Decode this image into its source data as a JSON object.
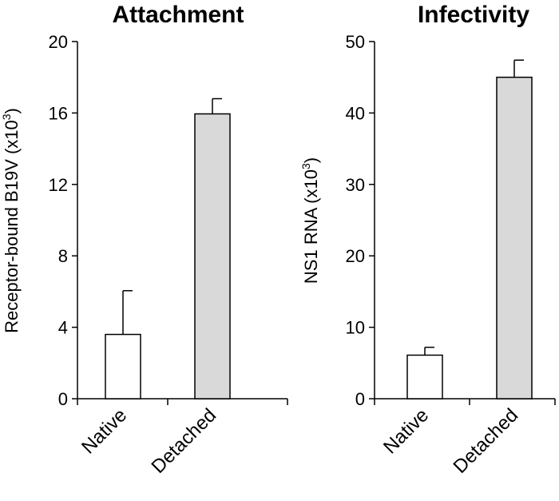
{
  "chart_data": [
    {
      "type": "bar",
      "title": "Attachment",
      "ylabel": "Receptor-bound B19V (x10",
      "ylabel_sup": "3",
      "ylabel_close": ")",
      "ylim": [
        0,
        20
      ],
      "yticks": [
        0,
        4,
        8,
        12,
        16,
        20
      ],
      "categories": [
        "Native",
        "Detached"
      ],
      "values": [
        3.6,
        15.95
      ],
      "errors": [
        2.45,
        0.85
      ],
      "colors": [
        "#ffffff",
        "#d9d9d9"
      ]
    },
    {
      "type": "bar",
      "title": "Infectivity",
      "ylabel": "NS1 RNA (x10",
      "ylabel_sup": "3",
      "ylabel_close": ")",
      "ylim": [
        0,
        50
      ],
      "yticks": [
        0,
        10,
        20,
        30,
        40,
        50
      ],
      "categories": [
        "Native",
        "Detached"
      ],
      "values": [
        6.1,
        45.0
      ],
      "errors": [
        1.1,
        2.4
      ],
      "colors": [
        "#ffffff",
        "#d9d9d9"
      ]
    }
  ]
}
